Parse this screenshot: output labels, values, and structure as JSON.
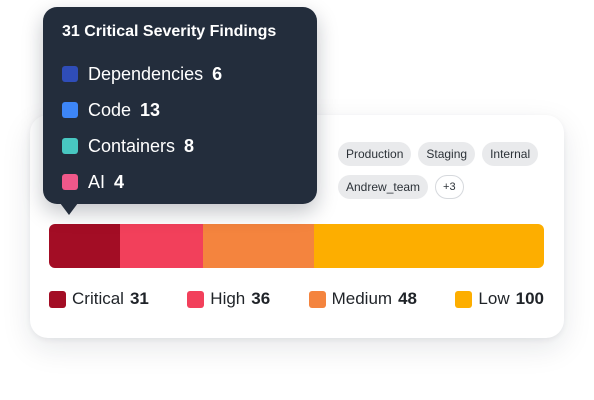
{
  "tooltip": {
    "title": "31 Critical Severity Findings",
    "rows": [
      {
        "label": "Dependencies",
        "count": "6",
        "color": "#2f4db8"
      },
      {
        "label": "Code",
        "count": "13",
        "color": "#3d86f7"
      },
      {
        "label": "Containers",
        "count": "8",
        "color": "#48c7c1"
      },
      {
        "label": "AI",
        "count": "4",
        "color": "#f0588a"
      }
    ]
  },
  "tags": [
    "Production",
    "Staging",
    "Internal",
    "Andrew_team",
    "+3"
  ],
  "severity": [
    {
      "key": "critical",
      "label": "Critical",
      "count": "31",
      "value": 31,
      "color": "#a30d25"
    },
    {
      "key": "high",
      "label": "High",
      "count": "36",
      "value": 36,
      "color": "#f2405b"
    },
    {
      "key": "medium",
      "label": "Medium",
      "count": "48",
      "value": 48,
      "color": "#f4843e"
    },
    {
      "key": "low",
      "label": "Low",
      "count": "100",
      "value": 100,
      "color": "#fdae00"
    }
  ]
}
